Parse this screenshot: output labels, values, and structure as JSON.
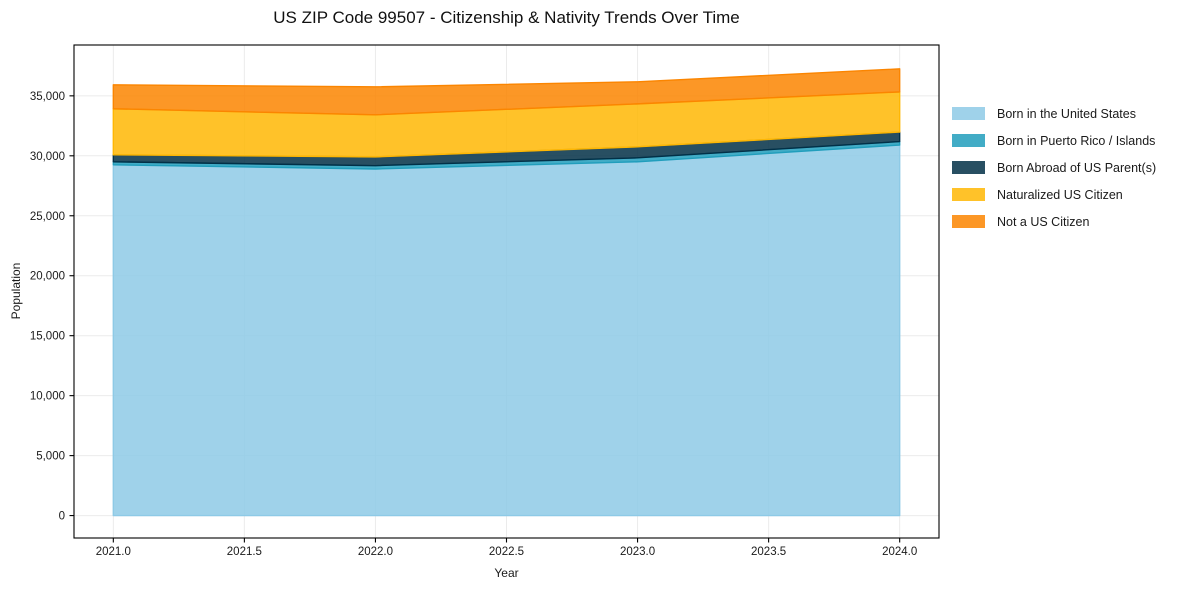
{
  "chart_data": {
    "type": "area",
    "stacked": true,
    "title": "US ZIP Code 99507 - Citizenship & Nativity Trends Over Time",
    "xlabel": "Year",
    "ylabel": "Population",
    "x": [
      2021,
      2022,
      2023,
      2024
    ],
    "series": [
      {
        "name": "Born in the United States",
        "color": "#8ecae6",
        "values": [
          29250,
          28900,
          29500,
          30900
        ]
      },
      {
        "name": "Born in Puerto Rico / Islands",
        "color": "#219ebc",
        "values": [
          250,
          280,
          330,
          290
        ]
      },
      {
        "name": "Born Abroad of US Parent(s)",
        "color": "#023047",
        "values": [
          580,
          730,
          920,
          790
        ]
      },
      {
        "name": "Naturalized US Citizen",
        "color": "#ffb703",
        "values": [
          3840,
          3510,
          3580,
          3350
        ]
      },
      {
        "name": "Not a US Citizen",
        "color": "#fb8500",
        "values": [
          2000,
          2330,
          1840,
          1920
        ]
      }
    ],
    "alpha": 0.85,
    "x_tick_values": [
      2021.0,
      2021.5,
      2022.0,
      2022.5,
      2023.0,
      2023.5,
      2024.0
    ],
    "x_tick_labels": [
      "2021.0",
      "2021.5",
      "2022.0",
      "2022.5",
      "2023.0",
      "2023.5",
      "2024.0"
    ],
    "y_tick_values": [
      0,
      5000,
      10000,
      15000,
      20000,
      25000,
      30000,
      35000
    ],
    "y_tick_labels": [
      "0",
      "5,000",
      "10,000",
      "15,000",
      "20,000",
      "25,000",
      "30,000",
      "35,000"
    ],
    "xlim": [
      2020.85,
      2024.15
    ],
    "ylim": [
      -1870,
      39240
    ],
    "grid": true,
    "legend_position": "right"
  }
}
